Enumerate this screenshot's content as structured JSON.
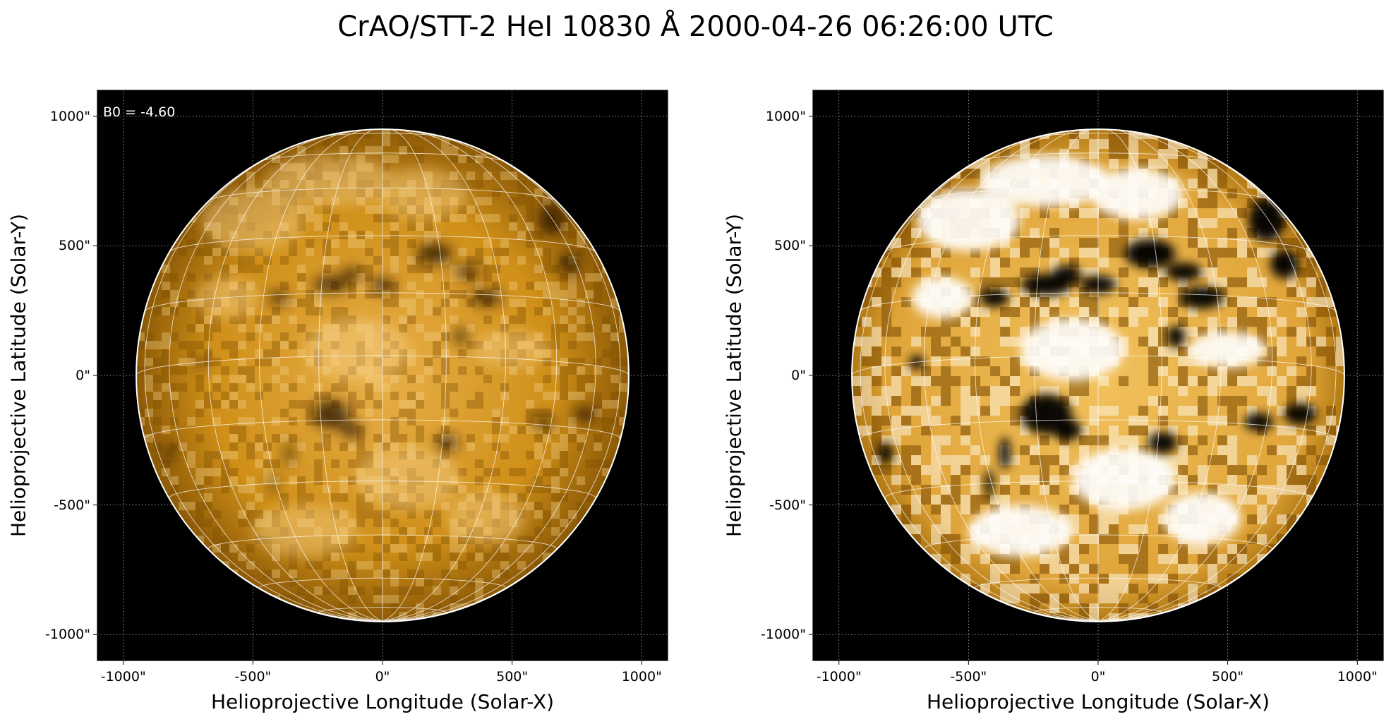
{
  "title": "CrAO/STT-2 HeI 10830 Å 2000-04-26 06:26:00 UTC",
  "colors": {
    "sun_base": "#c88a10",
    "sun_light": "#f4c86a",
    "sun_dark": "#3a2200",
    "grid": "#ffffff",
    "background": "#000000"
  },
  "panels": [
    {
      "id": "left",
      "style": "normal-contrast",
      "annotation": "B0 = -4.60",
      "xlabel": "Helioprojective Longitude (Solar-X)",
      "ylabel": "Helioprojective Latitude (Solar-Y)",
      "xticks": [
        "-1000\"",
        "-500\"",
        "0\"",
        "500\"",
        "1000\""
      ],
      "yticks": [
        "1000\"",
        "500\"",
        "0\"",
        "-500\"",
        "-1000\""
      ]
    },
    {
      "id": "right",
      "style": "enhanced-contrast",
      "annotation": "",
      "xlabel": "Helioprojective Longitude (Solar-X)",
      "ylabel": "Helioprojective Latitude (Solar-Y)",
      "xticks": [
        "-1000\"",
        "-500\"",
        "0\"",
        "500\"",
        "1000\""
      ],
      "yticks": [
        "1000\"",
        "500\"",
        "0\"",
        "-500\"",
        "-1000\""
      ]
    }
  ],
  "axes": {
    "xlim": [
      -1100,
      1100
    ],
    "ylim": [
      -1100,
      1100
    ],
    "tick_values": [
      -1000,
      -500,
      0,
      500,
      1000
    ],
    "solar_radius_arcsec": 950,
    "b0_deg": -4.6
  }
}
